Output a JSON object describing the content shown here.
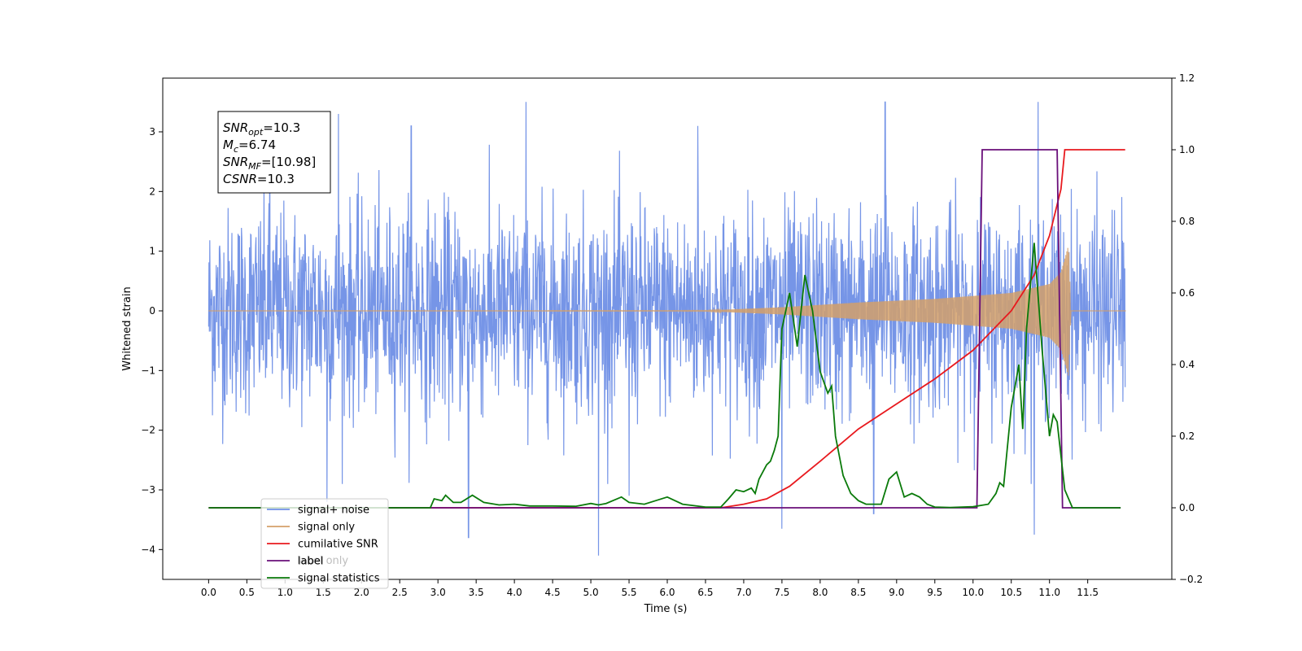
{
  "chart_data": {
    "type": "line",
    "xlabel": "Time (s)",
    "ylabel": "Whitened strain",
    "xlim": [
      -0.6,
      12.6
    ],
    "ylim": [
      -4.5,
      3.9
    ],
    "y2lim": [
      -0.2,
      1.2
    ],
    "x_ticks": [
      0.0,
      0.5,
      1.0,
      1.5,
      2.0,
      2.5,
      3.0,
      3.5,
      4.0,
      4.5,
      5.0,
      5.5,
      6.0,
      6.5,
      7.0,
      7.5,
      8.0,
      8.5,
      9.0,
      9.5,
      10.0,
      10.5,
      11.0,
      11.5
    ],
    "x_tick_labels": [
      "0.0",
      "0.5",
      "1.0",
      "1.5",
      "2.0",
      "2.5",
      "3.0",
      "3.5",
      "4.0",
      "4.5",
      "5.0",
      "5.5",
      "6.0",
      "6.5",
      "7.0",
      "7.5",
      "8.0",
      "8.5",
      "9.0",
      "9.5",
      "10.0",
      "10.5",
      "11.0",
      "11.5"
    ],
    "y_ticks": [
      -4,
      -3,
      -2,
      -1,
      0,
      1,
      2,
      3
    ],
    "y_tick_labels": [
      "−4",
      "−3",
      "−2",
      "−1",
      "0",
      "1",
      "2",
      "3"
    ],
    "y2_ticks": [
      -0.2,
      0.0,
      0.2,
      0.4,
      0.6,
      0.8,
      1.0,
      1.2
    ],
    "y2_tick_labels": [
      "−0.2",
      "0.0",
      "0.2",
      "0.4",
      "0.6",
      "0.8",
      "1.0",
      "1.2"
    ],
    "grid": false,
    "legend_position": "lower-left",
    "annotation": {
      "lines": [
        {
          "sym": "SNR",
          "sub": "opt",
          "rest": "=10.3"
        },
        {
          "sym": "M",
          "sub": "c",
          "rest": "=6.74"
        },
        {
          "sym": "SNR",
          "sub": "MF",
          "rest": "=[10.98]"
        },
        {
          "sym": "CSNR",
          "sub": "",
          "rest": "=10.3"
        }
      ]
    },
    "series": [
      {
        "name": "signal+ noise",
        "axis": "left",
        "color": "#6f8fe6",
        "kind": "noise",
        "x_range": [
          0.0,
          11.99
        ],
        "typical_envelope": [
          -2.1,
          2.1
        ],
        "peaks_high": [
          [
            0.8,
            3.3
          ],
          [
            1.7,
            3.3
          ],
          [
            4.15,
            3.5
          ],
          [
            8.85,
            3.5
          ],
          [
            10.85,
            3.5
          ],
          [
            2.65,
            3.1
          ],
          [
            6.4,
            3.1
          ]
        ],
        "peaks_low": [
          [
            1.55,
            -3.2
          ],
          [
            3.4,
            -3.8
          ],
          [
            5.1,
            -4.1
          ],
          [
            7.5,
            -3.65
          ],
          [
            10.8,
            -3.75
          ],
          [
            5.5,
            -3.1
          ],
          [
            8.7,
            -3.4
          ]
        ]
      },
      {
        "name": "signal only",
        "axis": "left",
        "color": "#d4a06a",
        "kind": "chirp",
        "amplitude_envelope": [
          [
            0.0,
            0.0
          ],
          [
            6.5,
            0.005
          ],
          [
            7.5,
            0.06
          ],
          [
            8.5,
            0.14
          ],
          [
            9.5,
            0.2
          ],
          [
            10.5,
            0.3
          ],
          [
            11.0,
            0.45
          ],
          [
            11.15,
            0.65
          ],
          [
            11.25,
            1.1
          ],
          [
            11.28,
            0.0
          ],
          [
            12.0,
            0.0
          ]
        ]
      },
      {
        "name": "cumilative SNR",
        "axis": "right",
        "color": "#e8191e",
        "x": [
          0.0,
          6.7,
          7.0,
          7.3,
          7.6,
          8.0,
          8.5,
          9.0,
          9.5,
          10.0,
          10.5,
          10.8,
          11.0,
          11.15,
          11.2,
          11.99
        ],
        "values": [
          0.0,
          0.0,
          0.01,
          0.025,
          0.06,
          0.13,
          0.22,
          0.29,
          0.36,
          0.44,
          0.55,
          0.65,
          0.76,
          0.89,
          1.0,
          1.0
        ]
      },
      {
        "name": "label",
        "axis": "right",
        "color": "#6a0f7a",
        "x": [
          0.0,
          10.05,
          10.12,
          11.1,
          11.17,
          11.93
        ],
        "values": [
          0.0,
          0.0,
          1.0,
          1.0,
          0.0,
          0.0
        ]
      },
      {
        "name": "signal statistics",
        "axis": "right",
        "color": "#0a7a0a",
        "x": [
          0.0,
          2.9,
          2.95,
          3.05,
          3.1,
          3.2,
          3.3,
          3.45,
          3.6,
          3.8,
          4.0,
          4.2,
          4.5,
          4.8,
          5.0,
          5.1,
          5.2,
          5.4,
          5.5,
          5.7,
          5.85,
          6.0,
          6.2,
          6.5,
          6.7,
          6.8,
          6.9,
          7.0,
          7.1,
          7.15,
          7.2,
          7.3,
          7.35,
          7.4,
          7.45,
          7.5,
          7.6,
          7.7,
          7.8,
          7.9,
          8.0,
          8.1,
          8.15,
          8.2,
          8.3,
          8.4,
          8.5,
          8.6,
          8.8,
          8.9,
          9.0,
          9.1,
          9.2,
          9.3,
          9.4,
          9.5,
          9.7,
          10.0,
          10.2,
          10.3,
          10.35,
          10.4,
          10.5,
          10.6,
          10.65,
          10.7,
          10.8,
          10.9,
          11.0,
          11.05,
          11.1,
          11.2,
          11.3,
          11.93
        ],
        "values": [
          0.0,
          0.0,
          0.025,
          0.02,
          0.035,
          0.015,
          0.015,
          0.035,
          0.015,
          0.008,
          0.01,
          0.005,
          0.005,
          0.004,
          0.012,
          0.008,
          0.012,
          0.03,
          0.015,
          0.01,
          0.02,
          0.03,
          0.01,
          0.002,
          0.002,
          0.025,
          0.05,
          0.045,
          0.055,
          0.04,
          0.08,
          0.12,
          0.13,
          0.16,
          0.2,
          0.5,
          0.6,
          0.45,
          0.65,
          0.55,
          0.38,
          0.32,
          0.34,
          0.2,
          0.09,
          0.04,
          0.02,
          0.01,
          0.01,
          0.08,
          0.1,
          0.03,
          0.04,
          0.03,
          0.01,
          0.002,
          0.001,
          0.003,
          0.01,
          0.04,
          0.07,
          0.06,
          0.28,
          0.4,
          0.22,
          0.5,
          0.74,
          0.45,
          0.2,
          0.26,
          0.24,
          0.05,
          0.0,
          0.0
        ]
      }
    ]
  },
  "legend_overlap_text": "label only",
  "legend_items": [
    "signal+ noise",
    "signal only",
    "cumilative SNR",
    "label",
    "signal statistics"
  ]
}
